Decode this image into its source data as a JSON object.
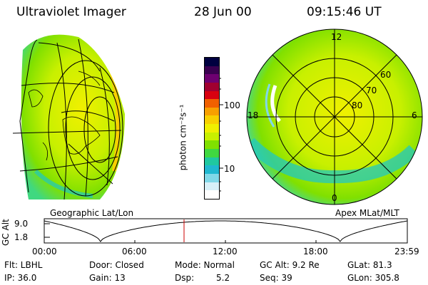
{
  "header": {
    "instrument": "Ultraviolet Imager",
    "date": "28 Jun 00",
    "time": "09:15:46 UT"
  },
  "left_image": {
    "caption": "Geographic Lat/Lon"
  },
  "right_image": {
    "caption": "Apex MLat/MLT",
    "mlt_labels": [
      "12",
      "18",
      "6",
      "0"
    ],
    "lat_labels": [
      "60",
      "70",
      "80"
    ]
  },
  "colorbar": {
    "unit_label": "photon cm⁻²s⁻¹",
    "tick_labels": [
      "100",
      "10"
    ],
    "colors": [
      "#000040",
      "#3a0050",
      "#6e0070",
      "#a00030",
      "#d80010",
      "#f06000",
      "#f8a000",
      "#f8d000",
      "#f0f000",
      "#c8f000",
      "#80e000",
      "#40d840",
      "#20c8a0",
      "#20b8d0",
      "#80d8e8",
      "#d8f0f8",
      "#ffffff"
    ]
  },
  "altitude_plot": {
    "ylabel": "GC Alt",
    "yticks": [
      "9.0",
      "1.8"
    ],
    "xticks": [
      "00:00",
      "06:00",
      "12:00",
      "18:00",
      "23:59"
    ],
    "current_time_marker": "09:15",
    "marker_color": "#cc0000"
  },
  "footer": {
    "row1": {
      "filter": "Flt: LBHL",
      "door": "Door: Closed",
      "mode": "Mode: Normal",
      "gc_alt": "GC Alt: 9.2 Re",
      "glat": "GLat: 81.3"
    },
    "row2": {
      "ip": "IP: 36.0",
      "gain": "Gain: 13",
      "dsp_label": "Dsp:",
      "dsp_value": "5.2",
      "seq": "Seq: 39",
      "glon": "GLon: 305.8"
    }
  },
  "image_colors": {
    "yellow": "#f0f000",
    "lime": "#c8f000",
    "green": "#80e000",
    "cyan": "#20c8c0",
    "orange": "#f8a000"
  }
}
